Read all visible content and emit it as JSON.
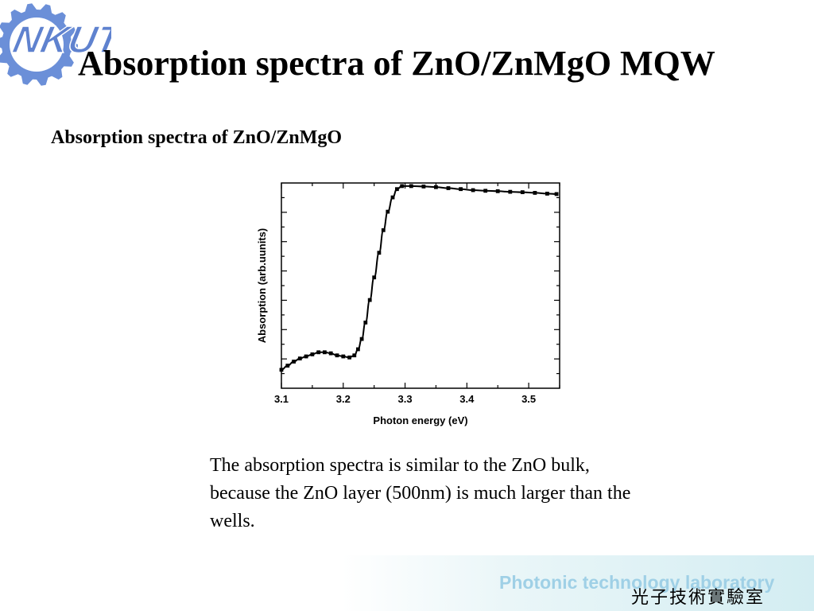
{
  "slide": {
    "title": "Absorption spectra of ZnO/ZnMgO MQW",
    "subtitle": "Absorption spectra of ZnO/ZnMgO",
    "description": "The absorption spectra is similar to the ZnO bulk, because the ZnO layer (500nm) is much larger than the wells.",
    "logo": {
      "text": "NKUT",
      "icon": "gear-logo-icon",
      "color": "#6b8fd8"
    },
    "footer": {
      "english": "Photonic technology laboratory",
      "chinese": "光子技術實驗室",
      "text_color": "#9fd0e6"
    }
  },
  "chart_data": {
    "type": "line",
    "title": "",
    "xlabel": "Photon energy (eV)",
    "ylabel": "Absorption (arb.uunits)",
    "xlim": [
      3.1,
      3.55
    ],
    "ylim": [
      0,
      1
    ],
    "x_ticks": [
      "3.1",
      "3.2",
      "3.3",
      "3.4",
      "3.5"
    ],
    "y_tick_labels": "none",
    "grid": false,
    "series": [
      {
        "color": "#000000",
        "marker": "square",
        "points": [
          [
            3.1,
            0.09
          ],
          [
            3.11,
            0.11
          ],
          [
            3.12,
            0.13
          ],
          [
            3.13,
            0.145
          ],
          [
            3.14,
            0.155
          ],
          [
            3.15,
            0.165
          ],
          [
            3.16,
            0.175
          ],
          [
            3.17,
            0.175
          ],
          [
            3.18,
            0.17
          ],
          [
            3.19,
            0.16
          ],
          [
            3.2,
            0.155
          ],
          [
            3.21,
            0.15
          ],
          [
            3.218,
            0.16
          ],
          [
            3.224,
            0.19
          ],
          [
            3.23,
            0.24
          ],
          [
            3.236,
            0.32
          ],
          [
            3.243,
            0.43
          ],
          [
            3.25,
            0.54
          ],
          [
            3.258,
            0.66
          ],
          [
            3.265,
            0.77
          ],
          [
            3.272,
            0.86
          ],
          [
            3.28,
            0.93
          ],
          [
            3.287,
            0.97
          ],
          [
            3.295,
            0.985
          ],
          [
            3.31,
            0.985
          ],
          [
            3.33,
            0.983
          ],
          [
            3.35,
            0.98
          ],
          [
            3.37,
            0.975
          ],
          [
            3.39,
            0.97
          ],
          [
            3.41,
            0.965
          ],
          [
            3.43,
            0.962
          ],
          [
            3.45,
            0.96
          ],
          [
            3.47,
            0.957
          ],
          [
            3.49,
            0.955
          ],
          [
            3.51,
            0.952
          ],
          [
            3.53,
            0.948
          ],
          [
            3.545,
            0.946
          ]
        ]
      }
    ]
  }
}
